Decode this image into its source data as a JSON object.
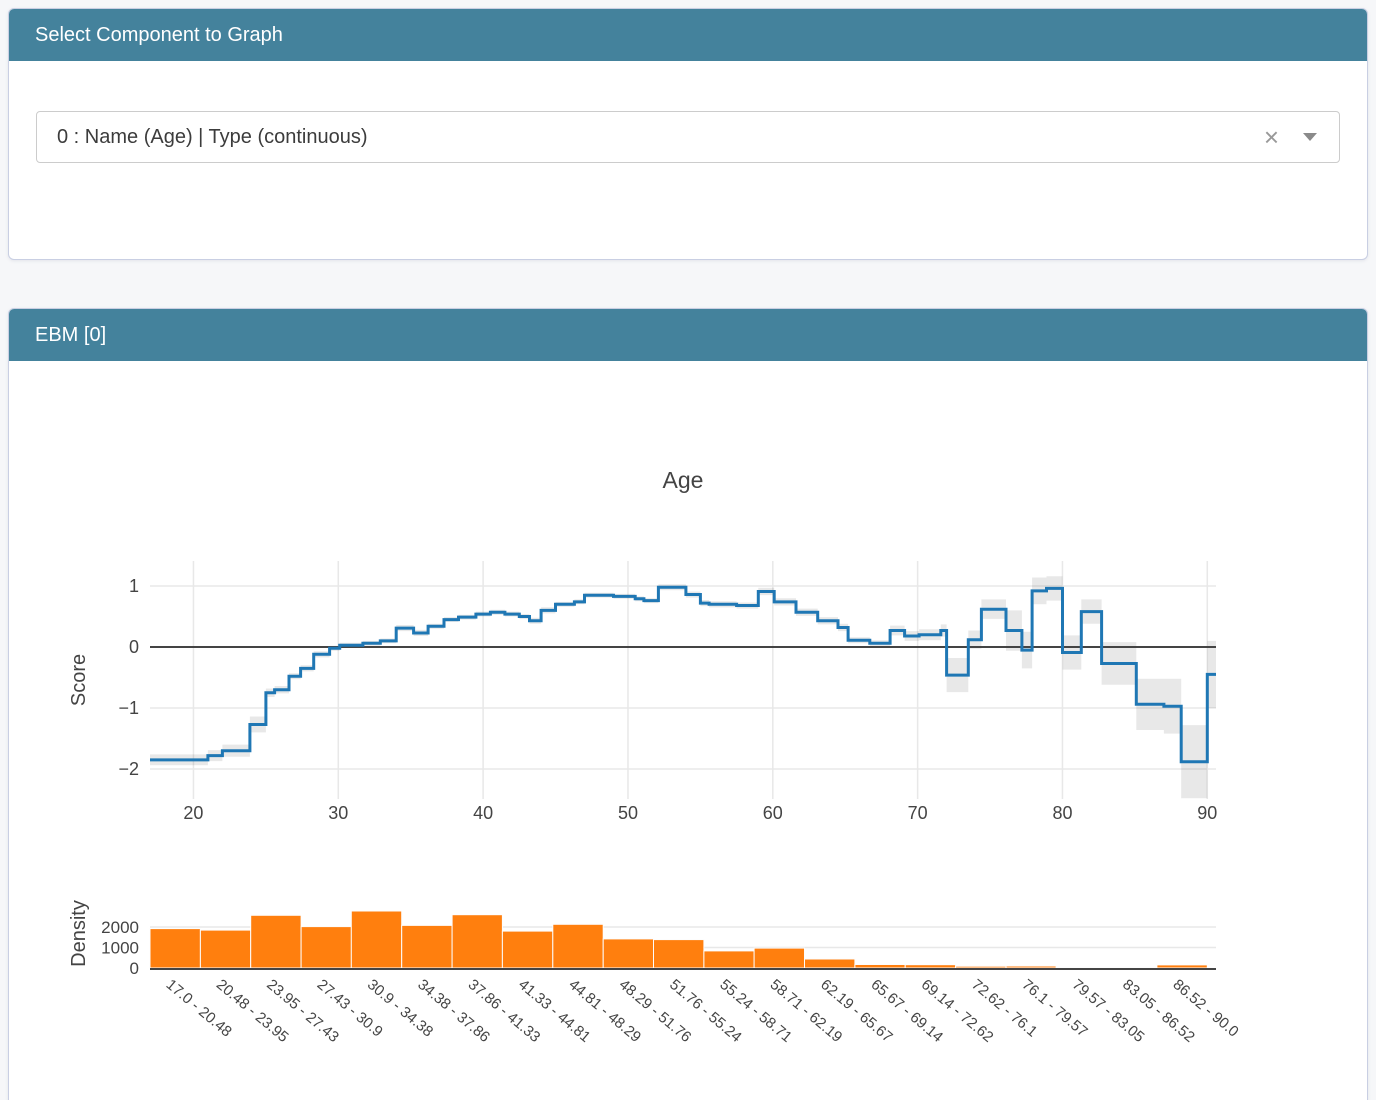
{
  "select_panel": {
    "title": "Select Component to Graph",
    "dropdown_value": "0 : Name (Age) | Type (continuous)",
    "clear_icon": "×"
  },
  "ebm_panel": {
    "title": "EBM [0]"
  },
  "colors": {
    "header_bg": "#44829c",
    "panel_border": "#c9cfe3",
    "line": "#1f77b4",
    "band": "#444444",
    "band_opacity": 0.12,
    "bars": "#ff7f0e",
    "bar_edge": "#fdfdfd",
    "axis_text": "#444444",
    "grid": "#e8e8e8",
    "zero_line": "#444444"
  },
  "chart_data": [
    {
      "type": "line",
      "subtype": "step-with-error-band",
      "title": "Age",
      "xlabel": "",
      "ylabel": "Score",
      "xlim": [
        17,
        90.6
      ],
      "ylim": [
        -2.5,
        1.4
      ],
      "x_ticks": [
        20,
        30,
        40,
        50,
        60,
        70,
        80,
        90
      ],
      "y_ticks": [
        1,
        0,
        -1,
        -2
      ],
      "grid": true,
      "legend": "none",
      "segments_format": [
        "x_start",
        "x_end",
        "score",
        "error_halfwidth"
      ],
      "segments": [
        [
          17,
          21,
          -1.85,
          0.09
        ],
        [
          21,
          22,
          -1.78,
          0.09
        ],
        [
          22,
          23.9,
          -1.7,
          0.1
        ],
        [
          23.9,
          25,
          -1.27,
          0.13
        ],
        [
          25,
          25.6,
          -0.75,
          0.07
        ],
        [
          25.6,
          26.6,
          -0.7,
          0.06
        ],
        [
          26.6,
          27.4,
          -0.48,
          0.05
        ],
        [
          27.4,
          28.3,
          -0.35,
          0.05
        ],
        [
          28.3,
          29.4,
          -0.12,
          0.05
        ],
        [
          29.4,
          30.1,
          -0.02,
          0.04
        ],
        [
          30.1,
          31.7,
          0.03,
          0.04
        ],
        [
          31.7,
          32.9,
          0.06,
          0.04
        ],
        [
          32.9,
          34,
          0.1,
          0.04
        ],
        [
          34,
          35.2,
          0.31,
          0.05
        ],
        [
          35.2,
          36.2,
          0.23,
          0.05
        ],
        [
          36.2,
          37.3,
          0.34,
          0.04
        ],
        [
          37.3,
          38.3,
          0.45,
          0.04
        ],
        [
          38.3,
          39.5,
          0.49,
          0.04
        ],
        [
          39.5,
          40.5,
          0.54,
          0.04
        ],
        [
          40.5,
          41.5,
          0.57,
          0.04
        ],
        [
          41.5,
          42.5,
          0.54,
          0.04
        ],
        [
          42.5,
          43.2,
          0.5,
          0.04
        ],
        [
          43.2,
          44,
          0.43,
          0.05
        ],
        [
          44,
          45,
          0.6,
          0.05
        ],
        [
          45,
          46.3,
          0.7,
          0.04
        ],
        [
          46.3,
          47,
          0.74,
          0.04
        ],
        [
          47,
          49,
          0.85,
          0.04
        ],
        [
          49,
          50.5,
          0.83,
          0.04
        ],
        [
          50.5,
          51.1,
          0.79,
          0.04
        ],
        [
          51.1,
          52.1,
          0.76,
          0.04
        ],
        [
          52.1,
          54,
          0.98,
          0.05
        ],
        [
          54,
          55,
          0.86,
          0.05
        ],
        [
          55,
          55.6,
          0.72,
          0.05
        ],
        [
          55.6,
          57.5,
          0.7,
          0.05
        ],
        [
          57.5,
          59,
          0.68,
          0.05
        ],
        [
          59,
          60.1,
          0.91,
          0.06
        ],
        [
          60.1,
          61.6,
          0.74,
          0.06
        ],
        [
          61.6,
          63.1,
          0.57,
          0.06
        ],
        [
          63.1,
          64.5,
          0.43,
          0.06
        ],
        [
          64.5,
          65.2,
          0.32,
          0.06
        ],
        [
          65.2,
          66.7,
          0.11,
          0.05
        ],
        [
          66.7,
          68.1,
          0.06,
          0.05
        ],
        [
          68.1,
          69.1,
          0.27,
          0.08
        ],
        [
          69.1,
          70.1,
          0.18,
          0.08
        ],
        [
          70.1,
          71.6,
          0.2,
          0.09
        ],
        [
          71.6,
          72,
          0.27,
          0.1
        ],
        [
          72,
          73.5,
          -0.46,
          0.28
        ],
        [
          73.5,
          74.4,
          0.12,
          0.15
        ],
        [
          74.4,
          76.1,
          0.62,
          0.16
        ],
        [
          76.1,
          77.2,
          0.27,
          0.33
        ],
        [
          77.2,
          77.9,
          -0.05,
          0.3
        ],
        [
          77.9,
          78.9,
          0.92,
          0.22
        ],
        [
          78.9,
          80,
          0.96,
          0.2
        ],
        [
          80,
          81.3,
          -0.09,
          0.28
        ],
        [
          81.3,
          82.7,
          0.58,
          0.2
        ],
        [
          82.7,
          85.1,
          -0.27,
          0.35
        ],
        [
          85.1,
          87,
          -0.94,
          0.42
        ],
        [
          87,
          88.2,
          -0.97,
          0.45
        ],
        [
          88.2,
          90,
          -1.88,
          0.6
        ],
        [
          90,
          90.6,
          -0.45,
          0.55
        ]
      ]
    },
    {
      "type": "bar",
      "subtype": "histogram",
      "ylabel": "Density",
      "y_ticks": [
        0,
        1000,
        2000
      ],
      "bin_edges": [
        17.0,
        20.48,
        23.95,
        27.43,
        30.9,
        34.38,
        37.86,
        41.33,
        44.81,
        48.29,
        51.76,
        55.24,
        58.71,
        62.19,
        65.67,
        69.14,
        72.62,
        76.1,
        79.57,
        83.05,
        86.52,
        90.0
      ],
      "categories": [
        "17.0 - 20.48",
        "20.48 - 23.95",
        "23.95 - 27.43",
        "27.43 - 30.9",
        "30.9 - 34.38",
        "34.38 - 37.86",
        "37.86 - 41.33",
        "41.33 - 44.81",
        "44.81 - 48.29",
        "48.29 - 51.76",
        "51.76 - 55.24",
        "55.24 - 58.71",
        "58.71 - 62.19",
        "62.19 - 65.67",
        "65.67 - 69.14",
        "69.14 - 72.62",
        "72.62 - 76.1",
        "76.1 - 79.57",
        "79.57 - 83.05",
        "83.05 - 86.52",
        "86.52 - 90.0"
      ],
      "values": [
        1920,
        1850,
        2570,
        2020,
        2780,
        2080,
        2600,
        1800,
        2130,
        1420,
        1385,
        835,
        970,
        440,
        170,
        160,
        90,
        100,
        50,
        40,
        150
      ]
    }
  ]
}
